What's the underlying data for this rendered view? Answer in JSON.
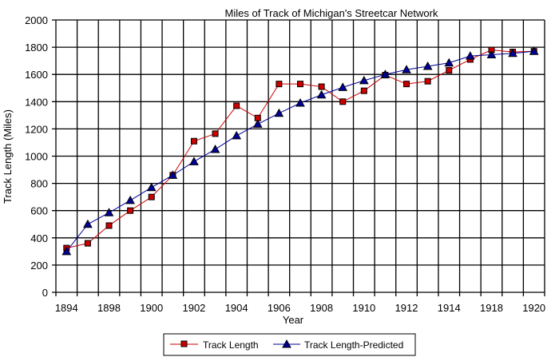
{
  "chart_data": {
    "type": "line",
    "title": "Miles of Track of Michigan's Streetcar Network",
    "xlabel": "Year",
    "ylabel": "Track Length (Miles)",
    "ylim": [
      0,
      2000
    ],
    "yticks": [
      "0",
      "200",
      "400",
      "600",
      "800",
      "1000",
      "1200",
      "1400",
      "1600",
      "1800",
      "2000"
    ],
    "categories": [
      "1894",
      "1896",
      "1898",
      "1899",
      "1900",
      "1901",
      "1902",
      "1903",
      "1904",
      "1905",
      "1906",
      "1907",
      "1908",
      "1909",
      "1910",
      "1911",
      "1912",
      "1913",
      "1914",
      "1916",
      "1918",
      "1919",
      "1920"
    ],
    "xtick_labels": [
      "1894",
      "1898",
      "1900",
      "1902",
      "1904",
      "1906",
      "1908",
      "1910",
      "1912",
      "1914",
      "1918",
      "1920"
    ],
    "grid": true,
    "legend": "bottom",
    "series": [
      {
        "name": "Track Length",
        "color": "#cc0000",
        "marker": "square",
        "values": [
          325,
          360,
          490,
          600,
          700,
          860,
          1110,
          1165,
          1370,
          1280,
          1530,
          1530,
          1510,
          1400,
          1480,
          1595,
          1530,
          1550,
          1630,
          1710,
          1780,
          1765,
          1770
        ]
      },
      {
        "name": "Track Length-Predicted",
        "color": "#000099",
        "marker": "triangle",
        "values": [
          300,
          500,
          585,
          675,
          770,
          860,
          960,
          1050,
          1150,
          1235,
          1315,
          1390,
          1450,
          1505,
          1555,
          1600,
          1635,
          1660,
          1685,
          1735,
          1745,
          1755,
          1770
        ]
      }
    ]
  }
}
